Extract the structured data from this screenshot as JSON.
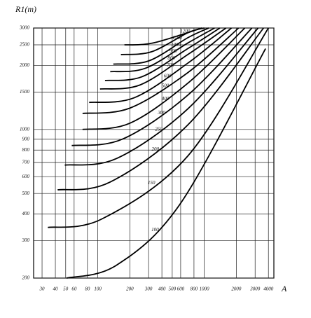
{
  "chart_data": {
    "type": "line",
    "title": "R1(m)",
    "x_label": "A",
    "log_x": true,
    "log_y": true,
    "grid": true,
    "color": "#000000",
    "xlim": [
      25,
      4500
    ],
    "ylim": [
      200,
      3000
    ],
    "xticks": [
      30,
      40,
      50,
      60,
      80,
      100,
      200,
      300,
      400,
      500,
      600,
      800,
      1000,
      2000,
      3000,
      4000
    ],
    "yticks": [
      200,
      300,
      400,
      500,
      600,
      700,
      800,
      900,
      1000,
      1500,
      2000,
      2500,
      3000
    ],
    "series": [
      {
        "name": "100",
        "x": [
          51,
          150,
          600,
          3760
        ],
        "values": [
          200,
          230,
          450,
          2400
        ]
      },
      {
        "name": "150",
        "x": [
          34,
          110,
          700,
          4000
        ],
        "values": [
          346,
          380,
          750,
          3000
        ]
      },
      {
        "name": "200",
        "x": [
          42,
          130,
          700,
          3600
        ],
        "values": [
          520,
          565,
          1050,
          3000
        ]
      },
      {
        "name": "250",
        "x": [
          49,
          150,
          700,
          3200
        ],
        "values": [
          680,
          730,
          1250,
          3000
        ]
      },
      {
        "name": "300",
        "x": [
          57,
          170,
          700,
          2800
        ],
        "values": [
          840,
          900,
          1450,
          3000
        ]
      },
      {
        "name": "400",
        "x": [
          72,
          200,
          700,
          2400
        ],
        "values": [
          1000,
          1070,
          1650,
          3000
        ]
      },
      {
        "name": "500",
        "x": [
          72,
          200,
          700,
          2100
        ],
        "values": [
          1190,
          1260,
          1850,
          3000
        ]
      },
      {
        "name": "600",
        "x": [
          83,
          220,
          700,
          1800
        ],
        "values": [
          1340,
          1410,
          2050,
          3000
        ]
      },
      {
        "name": "700",
        "x": [
          105,
          250,
          700,
          1600
        ],
        "values": [
          1550,
          1620,
          2250,
          3000
        ]
      },
      {
        "name": "800",
        "x": [
          117,
          260,
          700,
          1400
        ],
        "values": [
          1700,
          1770,
          2400,
          3000
        ]
      },
      {
        "name": "900",
        "x": [
          131,
          280,
          700,
          1250
        ],
        "values": [
          1870,
          1940,
          2550,
          3000
        ]
      },
      {
        "name": "1000",
        "x": [
          140,
          300,
          700,
          1100
        ],
        "values": [
          2030,
          2100,
          2700,
          3000
        ]
      },
      {
        "name": "1100",
        "x": [
          165,
          320,
          700,
          1000
        ],
        "values": [
          2250,
          2320,
          2850,
          3000
        ]
      },
      {
        "name": "1200",
        "x": [
          178,
          330,
          950
        ],
        "values": [
          2500,
          2550,
          3000
        ]
      }
    ]
  }
}
